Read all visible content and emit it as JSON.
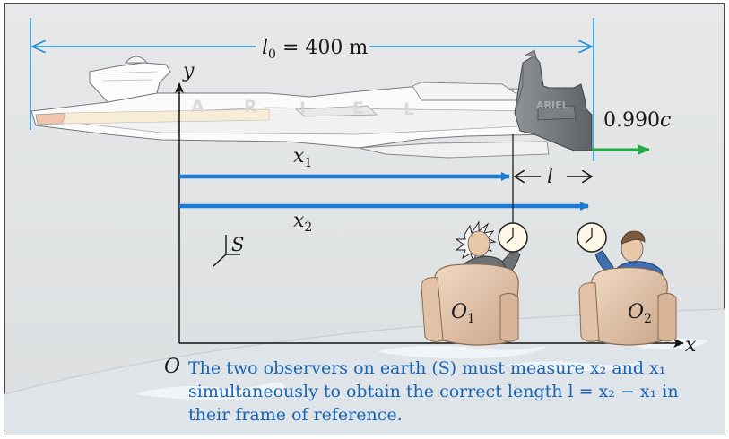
{
  "figure": {
    "length_label": {
      "var": "l",
      "sub": "0",
      "rest": " = 400 m"
    },
    "speed_label": {
      "value": "0.990",
      "unit": "c"
    },
    "axes": {
      "x": "x",
      "y": "y",
      "origin": "O",
      "frame": "S"
    },
    "x1_label": {
      "var": "x",
      "sub": "1"
    },
    "x2_label": {
      "var": "x",
      "sub": "2"
    },
    "l_label": "l",
    "ship_name": [
      "A",
      "R",
      "I",
      "E",
      "L"
    ],
    "tower_name": "ARIEL",
    "observers": [
      {
        "var": "O",
        "sub": "1"
      },
      {
        "var": "O",
        "sub": "2"
      }
    ],
    "caption": [
      "The two observers on earth (S) must measure x₂ and x₁",
      "simultaneously to obtain the correct length l = x₂ − x₁ in",
      "their frame of reference."
    ],
    "colors": {
      "background": "#e4e6e7",
      "border": "#111111",
      "dimension_line": "#1c8fd6",
      "measure_arrow": "#1a7ad4",
      "velocity_arrow": "#22aa44",
      "caption_text": "#1565b8"
    }
  }
}
